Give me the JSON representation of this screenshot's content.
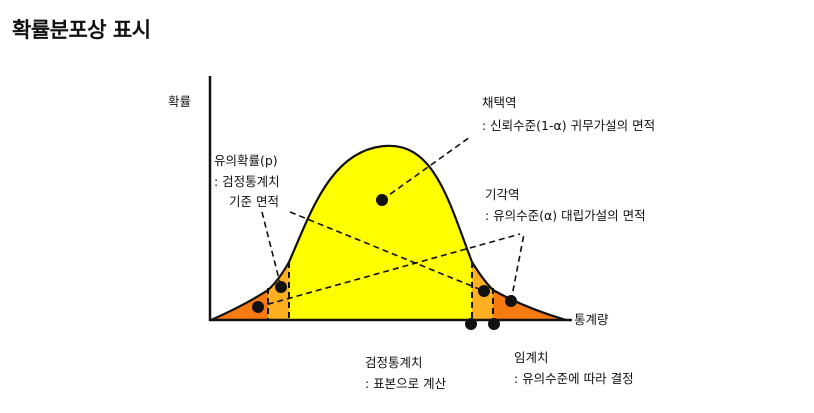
{
  "title": "확률분포상 표시",
  "axis": {
    "y_label": "확률",
    "x_label": "통계량"
  },
  "annotations": {
    "acceptance": {
      "line1": "채택역",
      "line2": ": 신뢰수준(1-α) 귀무가설의 면적"
    },
    "rejection": {
      "line1": "기각역",
      "line2": ": 유의수준(α) 대립가설의 면적"
    },
    "p_value": {
      "line1": "유의확률(p)",
      "line2": ": 검정통계치",
      "line3": "기준 면적"
    },
    "test_statistic": {
      "line1": "검정통계치",
      "line2": ": 표본으로 계산"
    },
    "critical_value": {
      "line1": "임계치",
      "line2": ": 유의수준에 따라 결정"
    }
  },
  "colors": {
    "acceptance_fill": "#ffff00",
    "rejection_fill": "#f57a10",
    "p_value_fill": "#ffb020",
    "outline": "#111111"
  }
}
